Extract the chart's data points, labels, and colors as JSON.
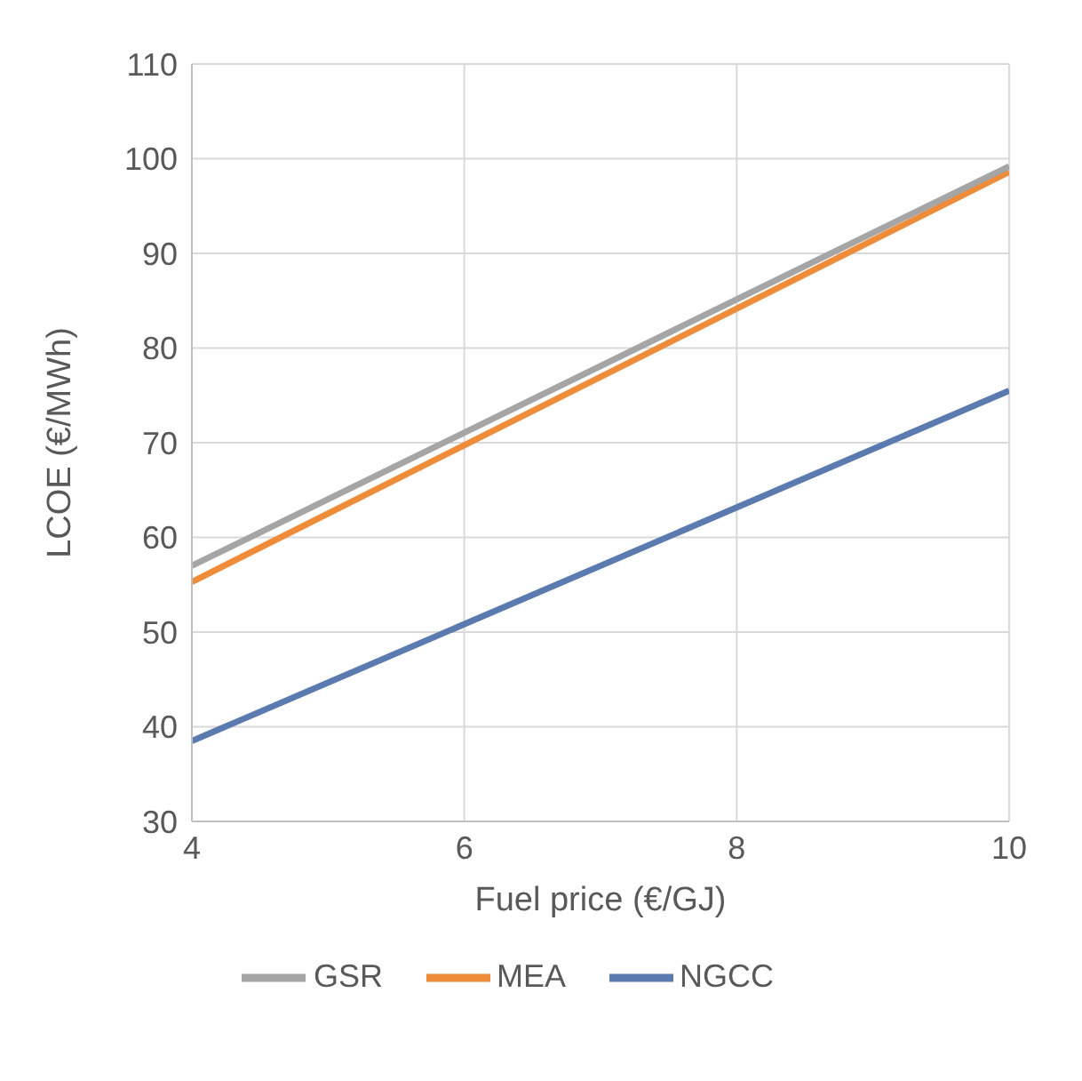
{
  "chart_data": {
    "type": "line",
    "xlabel": "Fuel price (€/GJ)",
    "ylabel": "LCOE (€/MWh)",
    "x": [
      4,
      10
    ],
    "series": [
      {
        "name": "NGCC",
        "color": "#5b7bb0",
        "values": [
          38.5,
          75.5
        ]
      },
      {
        "name": "MEA",
        "color": "#ef8c3a",
        "values": [
          55.3,
          98.6
        ]
      },
      {
        "name": "GSR",
        "color": "#a5a5a5",
        "values": [
          57,
          99.2
        ]
      }
    ],
    "xlim": [
      4,
      10
    ],
    "xticks": [
      4,
      6,
      8,
      10
    ],
    "ylim": [
      30,
      110
    ],
    "yticks": [
      30,
      40,
      50,
      60,
      70,
      80,
      90,
      100,
      110
    ],
    "grid": true,
    "legend": "bottom",
    "marker": "none",
    "line_style": "solid"
  }
}
